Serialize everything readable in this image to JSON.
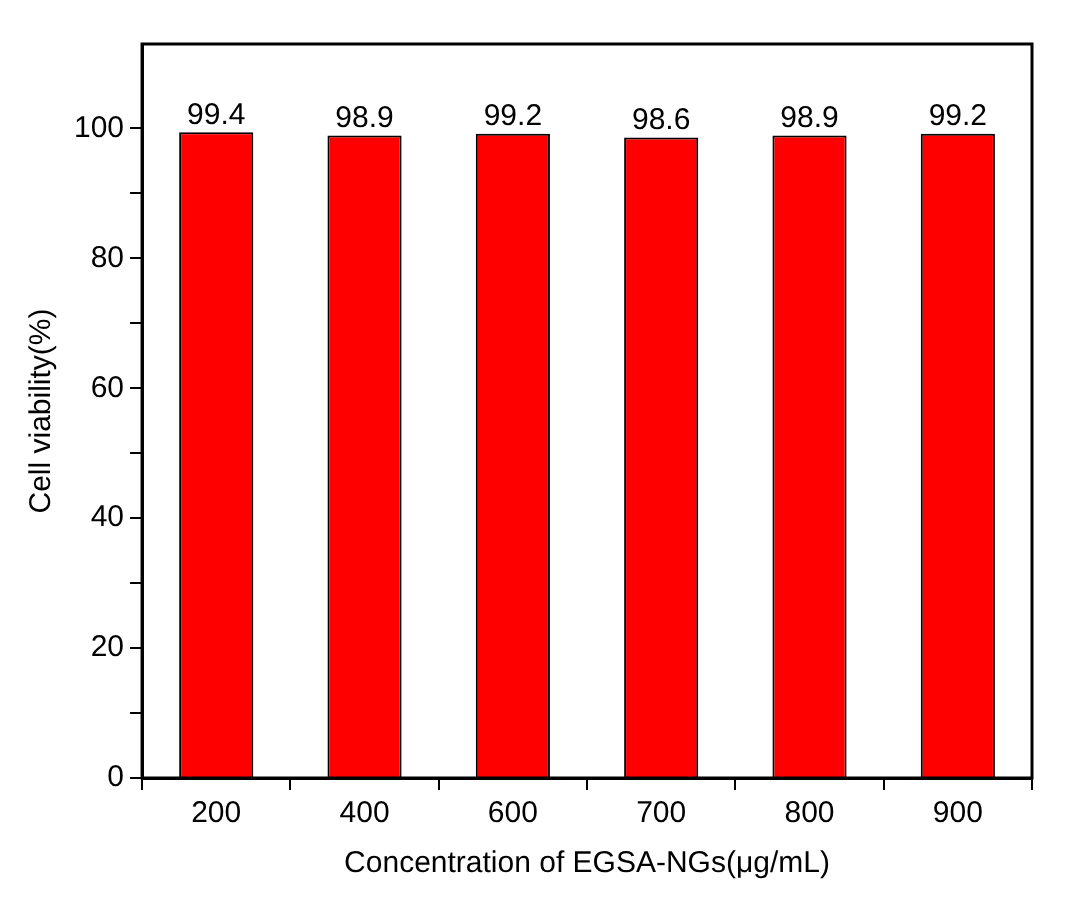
{
  "chart_data": {
    "type": "bar",
    "xlabel": "Concentration of EGSA-NGs(μg/mL)",
    "ylabel": "Cell viability(%)",
    "categories": [
      "200",
      "400",
      "600",
      "700",
      "800",
      "900"
    ],
    "values": [
      99.4,
      98.9,
      99.2,
      98.6,
      98.9,
      99.2
    ],
    "color": "#ff0000",
    "ylim": [
      0,
      113
    ],
    "yticks": [
      0,
      {
        "value": 10,
        "label": null
      },
      20,
      {
        "value": 30,
        "label": null
      },
      40,
      {
        "value": 50,
        "label": null
      },
      60,
      {
        "value": 70,
        "label": null
      },
      80,
      {
        "value": 90,
        "label": null
      },
      100
    ],
    "grid": false,
    "legend": false,
    "data_labels": true
  }
}
